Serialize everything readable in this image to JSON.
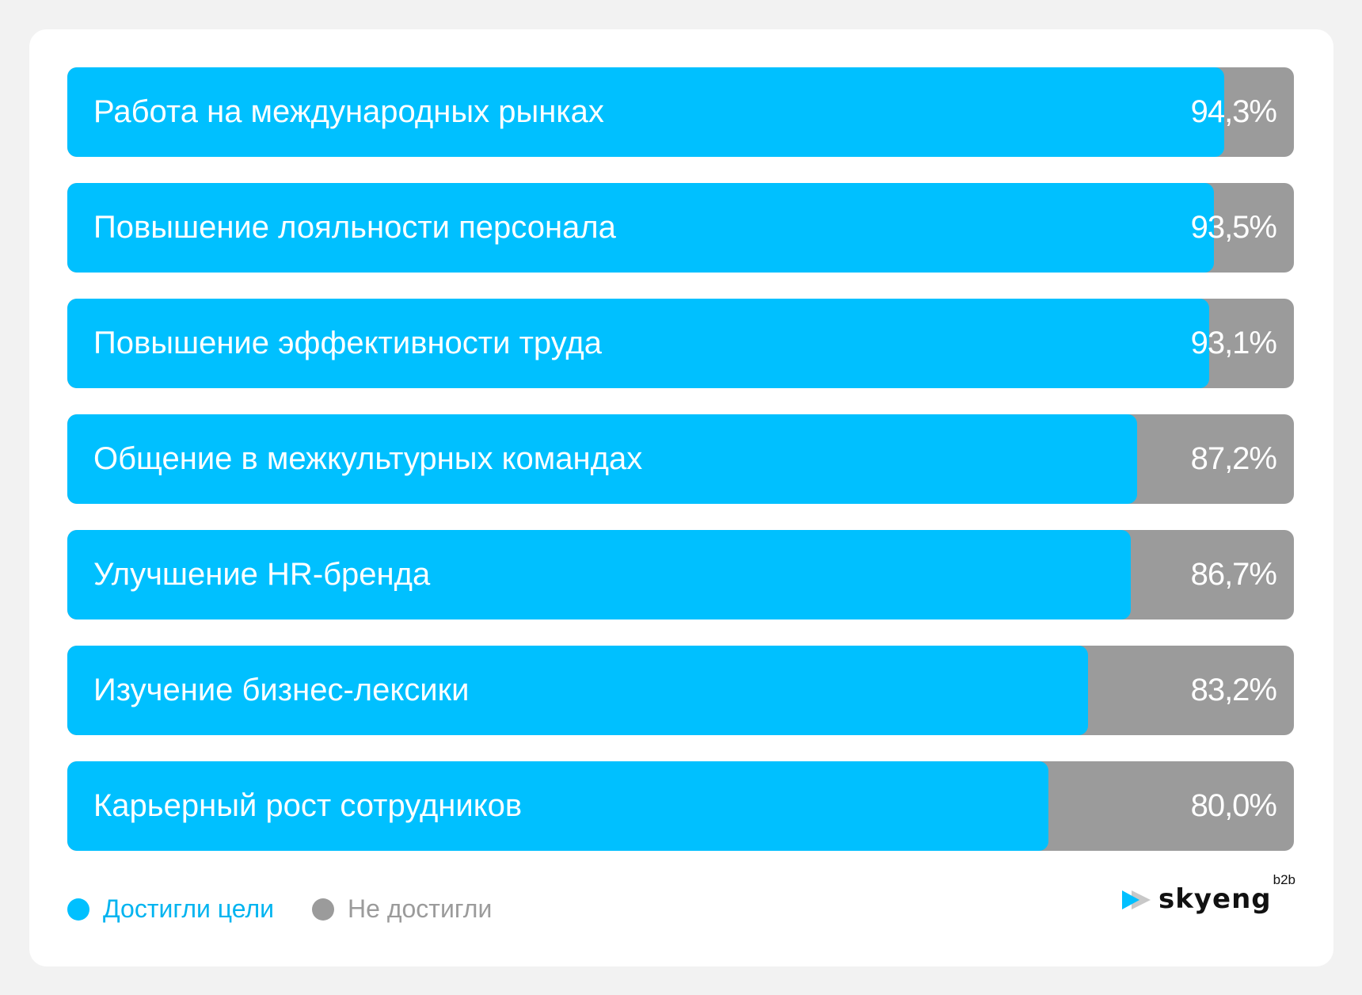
{
  "chart_data": {
    "type": "bar",
    "orientation": "horizontal",
    "stacked_to_100": true,
    "categories": [
      "Работа на международных рынках",
      "Повышение лояльности персонала",
      "Повышение эффективности труда",
      "Общение в межкультурных командах",
      "Улучшение HR-бренда",
      "Изучение бизнес-лексики",
      "Карьерный рост сотрудников"
    ],
    "values": [
      94.3,
      93.5,
      93.1,
      87.2,
      86.7,
      83.2,
      80.0
    ],
    "value_labels": [
      "94,3%",
      "93,5%",
      "93,1%",
      "87,2%",
      "86,7%",
      "83,2%",
      "80,0%"
    ],
    "series": [
      {
        "name": "Достигли цели",
        "color": "#00c0ff"
      },
      {
        "name": "Не достигли",
        "color": "#9b9b9b"
      }
    ],
    "xlim": [
      0,
      100
    ],
    "legend_position": "bottom-left"
  },
  "legend": [
    {
      "label": "Достигли цели",
      "color": "#00c0ff",
      "text_color": "#00b4f0"
    },
    {
      "label": "Не достигли",
      "color": "#9b9b9b",
      "text_color": "#9b9b9b"
    }
  ],
  "logo": {
    "name": "skyeng",
    "sup": "b2b",
    "icon": "skyeng-play-icon"
  }
}
